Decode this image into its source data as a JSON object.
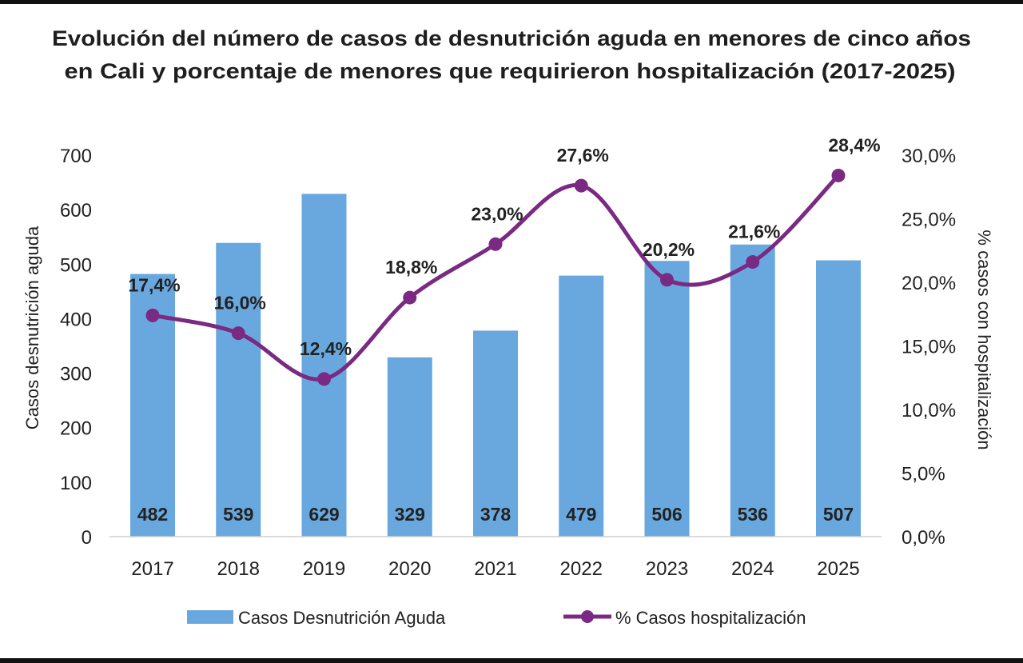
{
  "chart_data": {
    "type": "bar+line",
    "title_lines": [
      "Evolución del número de casos de desnutrición aguda en menores de cinco años",
      "en Cali y porcentaje de menores que requirieron hospitalización (2017-2025)"
    ],
    "categories": [
      "2017",
      "2018",
      "2019",
      "2020",
      "2021",
      "2022",
      "2023",
      "2024",
      "2025"
    ],
    "series": [
      {
        "name": "Casos Desnutrición Aguda",
        "type": "bar",
        "axis": "left",
        "values": [
          482,
          539,
          629,
          329,
          378,
          479,
          506,
          536,
          507
        ],
        "labels": [
          "482",
          "539",
          "629",
          "329",
          "378",
          "479",
          "506",
          "536",
          "507"
        ],
        "color": "#69a8de"
      },
      {
        "name": "% Casos hospitalización",
        "type": "line",
        "axis": "right",
        "values": [
          17.4,
          16.0,
          12.4,
          18.8,
          23.0,
          27.6,
          20.2,
          21.6,
          28.4
        ],
        "labels": [
          "17,4%",
          "16,0%",
          "12,4%",
          "18,8%",
          "23,0%",
          "27,6%",
          "20,2%",
          "21,6%",
          "28,4%"
        ],
        "color": "#7a2a82"
      }
    ],
    "ylabel": "Casos desnutrición aguda",
    "ylim": [
      0,
      700
    ],
    "yticks": [
      "0",
      "100",
      "200",
      "300",
      "400",
      "500",
      "600",
      "700"
    ],
    "y2label": "% casos con hospitalización",
    "y2lim": [
      0,
      30
    ],
    "y2ticks": [
      "0,0%",
      "5,0%",
      "10,0%",
      "15,0%",
      "20,0%",
      "25,0%",
      "30,0%"
    ],
    "grid": false,
    "legend": "bottom"
  }
}
